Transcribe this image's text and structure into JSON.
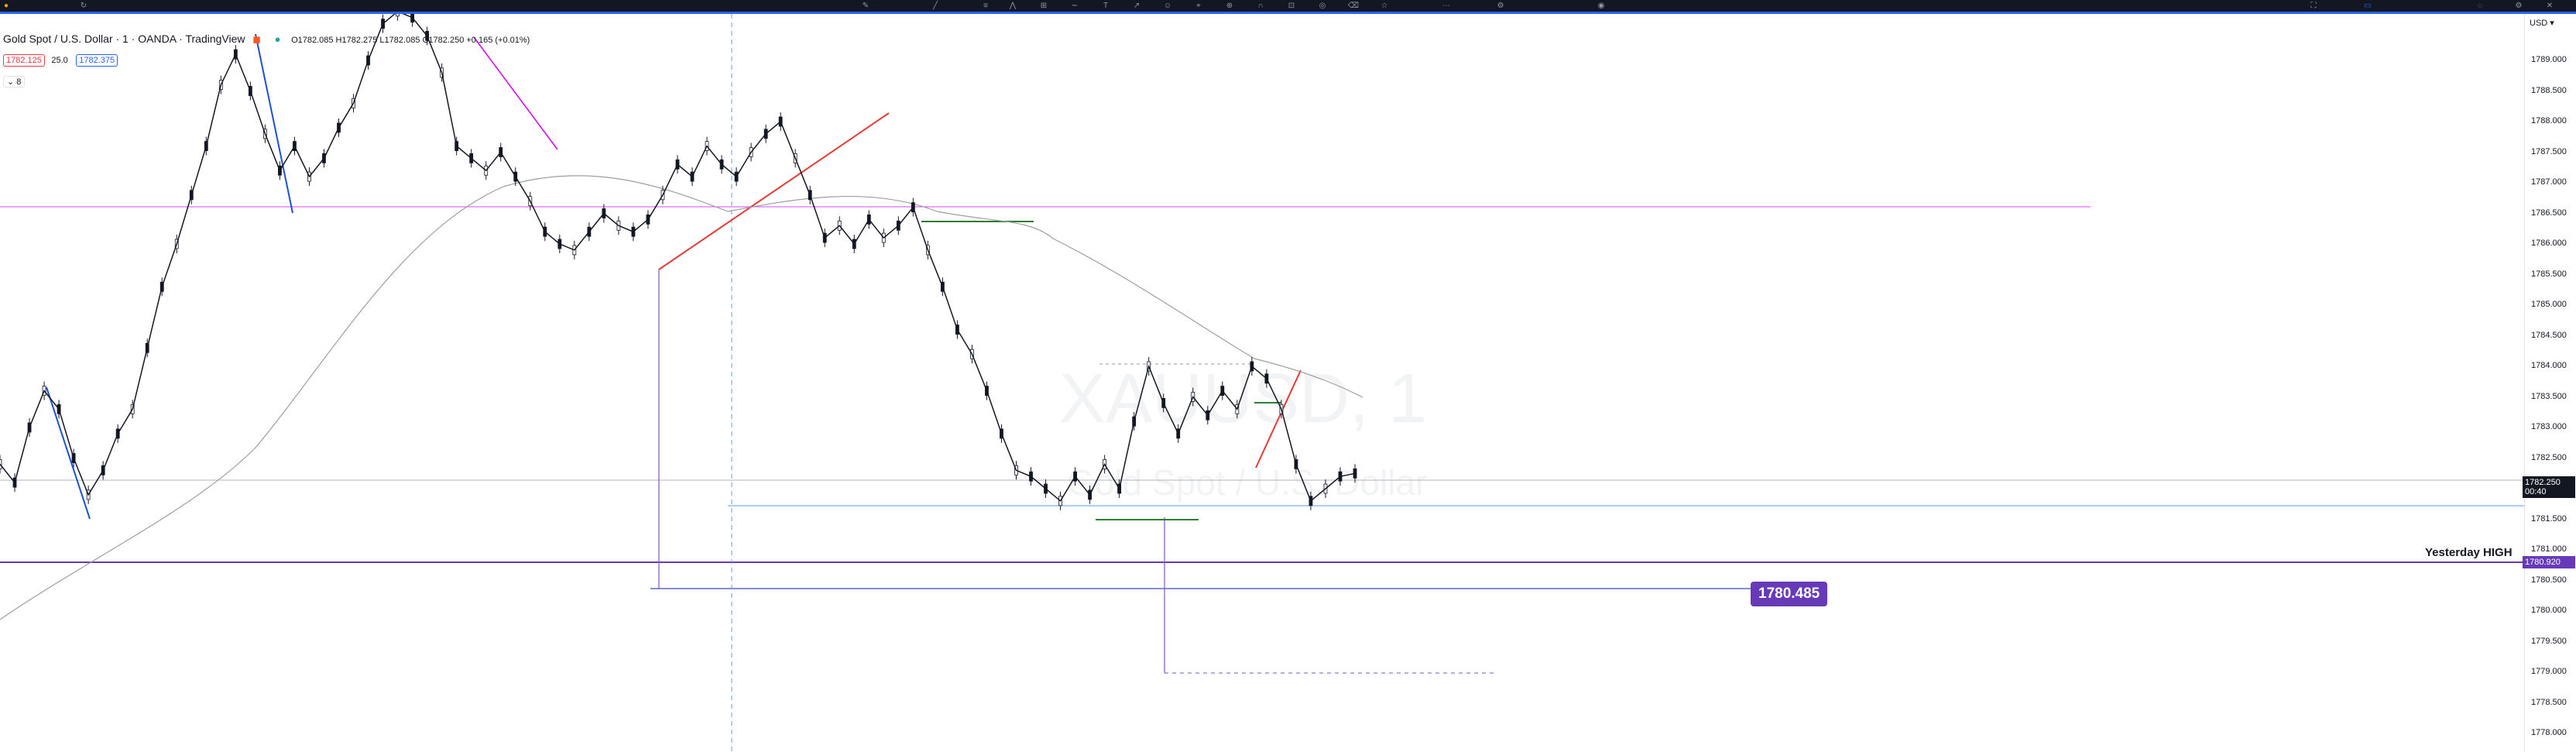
{
  "symbol": {
    "title": "Gold Spot / U.S. Dollar · 1 · OANDA · TradingView",
    "ohlc": "O1782.085 H1782.275 L1782.085 C1782.250 +0.165 (+0.01%)",
    "bid": "1782.125",
    "spread": "25.0",
    "ask": "1782.375",
    "collapse": "⌄ 8"
  },
  "watermark": {
    "line1": "XAUUSD, 1",
    "line2": "Gold Spot / U.S. Dollar"
  },
  "axis": {
    "currency": "USD",
    "current_price": "1782.250",
    "countdown": "00:40",
    "yesterday_high_price": "1780.920",
    "ticks": [
      "1789.000",
      "1788.500",
      "1788.000",
      "1787.500",
      "1787.000",
      "1786.500",
      "1786.000",
      "1785.500",
      "1785.000",
      "1784.500",
      "1784.000",
      "1783.500",
      "1783.000",
      "1782.500",
      "1782.000",
      "1781.500",
      "1781.000",
      "1780.500",
      "1780.000",
      "1779.500",
      "1779.000",
      "1778.500",
      "1778.000"
    ]
  },
  "annotations": {
    "target_label": "1780.485",
    "yesterday_high_label": "Yesterday HIGH"
  },
  "chart_data": {
    "type": "line",
    "series": [
      {
        "values": [
          1782.4,
          1782.1,
          1783.0,
          1783.6,
          1783.3,
          1782.5,
          1781.9,
          1782.3,
          1782.9,
          1783.3,
          1784.3,
          1785.3,
          1786.0,
          1786.8,
          1787.6,
          1788.6,
          1789.1,
          1788.5,
          1787.8,
          1787.2,
          1787.6,
          1787.1,
          1787.4,
          1787.9,
          1788.3,
          1789.0,
          1789.6,
          1789.8,
          1789.7,
          1789.4,
          1788.8,
          1787.6,
          1787.4,
          1787.2,
          1787.5,
          1787.1,
          1786.7,
          1786.2,
          1786.0,
          1785.9,
          1786.2,
          1786.5,
          1786.3,
          1786.2,
          1786.4,
          1786.8,
          1787.3,
          1787.1,
          1787.6,
          1787.3,
          1787.1,
          1787.5,
          1787.8,
          1788.0,
          1787.4,
          1786.8,
          1786.1,
          1786.3,
          1786.0,
          1786.4,
          1786.1,
          1786.3,
          1786.6,
          1785.9,
          1785.3,
          1784.6,
          1784.2,
          1783.6,
          1782.9,
          1782.3,
          1782.2,
          1782.0,
          1781.8,
          1782.2,
          1781.9,
          1782.4,
          1782.0,
          1783.1,
          1784.0,
          1783.4,
          1782.9,
          1783.5,
          1783.2,
          1783.6,
          1783.3,
          1784.0,
          1783.8,
          1783.3,
          1782.4,
          1781.8,
          1782.0,
          1782.2,
          1782.25
        ]
      }
    ],
    "ylim": [
      1777.8,
      1789.8
    ]
  }
}
